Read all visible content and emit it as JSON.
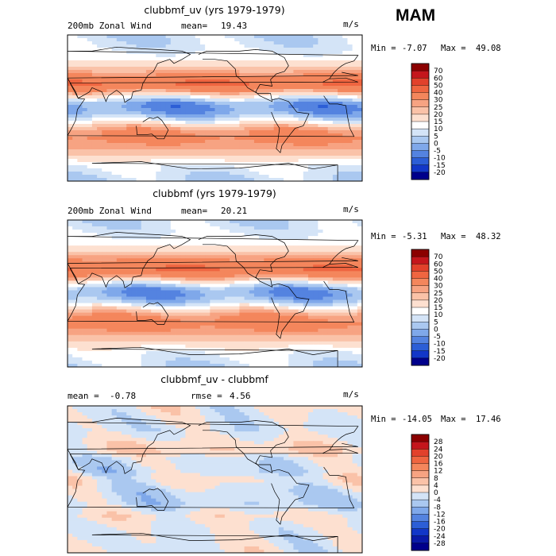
{
  "season": "MAM",
  "panels": [
    {
      "title": "clubbmf_uv (yrs 1979-1979)",
      "left_label": "200mb Zonal Wind",
      "mean_label": "mean=",
      "mean_value": "19.43",
      "units": "m/s",
      "min_label": "Min =",
      "min_value": "-7.07",
      "max_label": "Max =",
      "max_value": "49.08"
    },
    {
      "title": "clubbmf (yrs 1979-1979)",
      "left_label": "200mb Zonal Wind",
      "mean_label": "mean=",
      "mean_value": "20.21",
      "units": "m/s",
      "min_label": "Min =",
      "min_value": "-5.31",
      "max_label": "Max =",
      "max_value": "48.32"
    },
    {
      "title": "clubbmf_uv - clubbmf",
      "left_label": "mean =  -0.78",
      "mean_label": "rmse =",
      "mean_value": "4.56",
      "units": "m/s",
      "min_label": "Min =",
      "min_value": "-14.05",
      "max_label": "Max =",
      "max_value": "17.46"
    }
  ],
  "chart_data": [
    {
      "type": "heatmap",
      "title": "clubbmf_uv (yrs 1979-1979)",
      "variable": "200mb Zonal Wind",
      "units": "m/s",
      "mean": 19.43,
      "min": -7.07,
      "max": 49.08,
      "colorbar_levels": [
        70,
        60,
        50,
        40,
        30,
        25,
        20,
        15,
        10,
        5,
        0,
        -5,
        -10,
        -15,
        -20
      ],
      "colorbar_colors": [
        "#8b0000",
        "#c4161c",
        "#e2412b",
        "#ef6540",
        "#f4865c",
        "#f7a382",
        "#fac2a8",
        "#fde0d0",
        "#ffffff",
        "#d4e4f7",
        "#aac8f0",
        "#7fa8ea",
        "#5483e0",
        "#2c5ed6",
        "#1237c8",
        "#00008b"
      ],
      "lat_profile": [
        [
          90,
          6
        ],
        [
          75,
          8
        ],
        [
          60,
          13
        ],
        [
          48,
          22
        ],
        [
          40,
          32
        ],
        [
          30,
          41
        ],
        [
          22,
          30
        ],
        [
          12,
          8
        ],
        [
          5,
          -3
        ],
        [
          0,
          -5
        ],
        [
          -8,
          0
        ],
        [
          -18,
          15
        ],
        [
          -28,
          30
        ],
        [
          -38,
          33
        ],
        [
          -48,
          27
        ],
        [
          -60,
          18
        ],
        [
          -72,
          10
        ],
        [
          -90,
          5
        ]
      ]
    },
    {
      "type": "heatmap",
      "title": "clubbmf (yrs 1979-1979)",
      "variable": "200mb Zonal Wind",
      "units": "m/s",
      "mean": 20.21,
      "min": -5.31,
      "max": 48.32,
      "colorbar_levels": [
        70,
        60,
        50,
        40,
        30,
        25,
        20,
        15,
        10,
        5,
        0,
        -5,
        -10,
        -15,
        -20
      ],
      "colorbar_colors": [
        "#8b0000",
        "#c4161c",
        "#e2412b",
        "#ef6540",
        "#f4865c",
        "#f7a382",
        "#fac2a8",
        "#fde0d0",
        "#ffffff",
        "#d4e4f7",
        "#aac8f0",
        "#7fa8ea",
        "#5483e0",
        "#2c5ed6",
        "#1237c8",
        "#00008b"
      ],
      "lat_profile": [
        [
          90,
          6
        ],
        [
          75,
          9
        ],
        [
          60,
          14
        ],
        [
          48,
          23
        ],
        [
          40,
          33
        ],
        [
          30,
          40
        ],
        [
          22,
          31
        ],
        [
          12,
          9
        ],
        [
          5,
          -2
        ],
        [
          0,
          -4
        ],
        [
          -8,
          1
        ],
        [
          -18,
          16
        ],
        [
          -28,
          31
        ],
        [
          -38,
          34
        ],
        [
          -48,
          28
        ],
        [
          -60,
          19
        ],
        [
          -72,
          11
        ],
        [
          -90,
          6
        ]
      ]
    },
    {
      "type": "heatmap",
      "title": "clubbmf_uv - clubbmf",
      "variable": "200mb Zonal Wind difference",
      "units": "m/s",
      "mean": -0.78,
      "rmse": 4.56,
      "min": -14.05,
      "max": 17.46,
      "colorbar_levels": [
        28,
        24,
        20,
        16,
        12,
        8,
        4,
        0,
        -4,
        -8,
        -12,
        -16,
        -20,
        -24,
        -28
      ],
      "colorbar_colors": [
        "#8b0000",
        "#c4161c",
        "#e2412b",
        "#ef6540",
        "#f4865c",
        "#f7a382",
        "#fac2a8",
        "#fde0d0",
        "#d4e4f7",
        "#aac8f0",
        "#7fa8ea",
        "#5483e0",
        "#2c5ed6",
        "#1237c8",
        "#0a1aa8",
        "#00008b"
      ],
      "lat_profile": [
        [
          90,
          0
        ],
        [
          60,
          -2
        ],
        [
          45,
          2
        ],
        [
          35,
          4
        ],
        [
          25,
          -2
        ],
        [
          10,
          -3
        ],
        [
          0,
          1
        ],
        [
          -15,
          -3
        ],
        [
          -30,
          -4
        ],
        [
          -45,
          2
        ],
        [
          -60,
          -1
        ],
        [
          -90,
          0
        ]
      ]
    }
  ]
}
